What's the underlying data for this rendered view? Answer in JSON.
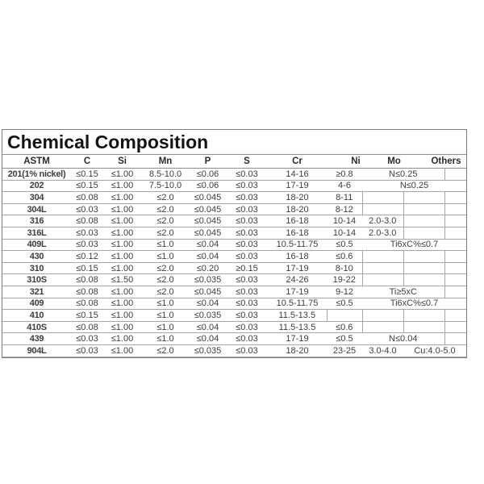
{
  "title": "Chemical Composition",
  "table": {
    "columns": [
      "ASTM",
      "C",
      "Si",
      "Mn",
      "P",
      "S",
      "Cr",
      "Ni",
      "Mo",
      "Others"
    ],
    "rows": [
      {
        "astm": "201(1% nickel)",
        "c": "≤0.15",
        "si": "≤1.00",
        "mn": "8.5-10.0",
        "p": "≤0.06",
        "s": "≤0.03",
        "cr": "14-16",
        "ni": "≥0.8",
        "tail": {
          "type": "span-right",
          "text": "N≤0.25"
        }
      },
      {
        "astm": "202",
        "c": "≤0.15",
        "si": "≤1.00",
        "mn": "7.5-10.0",
        "p": "≤0.06",
        "s": "≤0.03",
        "cr": "17-19",
        "ni": "4-6",
        "tail": {
          "type": "span-center",
          "text": "N≤0.25"
        }
      },
      {
        "astm": "304",
        "c": "≤0.08",
        "si": "≤1.00",
        "mn": "≤2.0",
        "p": "≤0.045",
        "s": "≤0.03",
        "cr": "18-20",
        "ni": "8-11",
        "tail": {
          "type": "boxed"
        }
      },
      {
        "astm": "304L",
        "c": "≤0.03",
        "si": "≤1.00",
        "mn": "≤2.0",
        "p": "≤0.045",
        "s": "≤0.03",
        "cr": "18-20",
        "ni": "8-12",
        "tail": {
          "type": "boxed"
        }
      },
      {
        "astm": "316",
        "c": "≤0.08",
        "si": "≤1.00",
        "mn": "≤2.0",
        "p": "≤0.045",
        "s": "≤0.03",
        "cr": "16-18",
        "ni": "10-14",
        "tail": {
          "type": "mo-value",
          "mo": "2.0-3.0"
        }
      },
      {
        "astm": "316L",
        "c": "≤0.03",
        "si": "≤1.00",
        "mn": "≤2.0",
        "p": "≤0.045",
        "s": "≤0.03",
        "cr": "16-18",
        "ni": "10-14",
        "tail": {
          "type": "mo-value",
          "mo": "2.0-3.0"
        }
      },
      {
        "astm": "409L",
        "c": "≤0.03",
        "si": "≤1.00",
        "mn": "≤1.0",
        "p": "≤0.04",
        "s": "≤0.03",
        "cr": "10.5-11.75",
        "ni": "≤0.5",
        "tail": {
          "type": "span-center",
          "text": "Ti6xC%≤0.7"
        }
      },
      {
        "astm": "430",
        "c": "≤0.12",
        "si": "≤1.00",
        "mn": "≤1.0",
        "p": "≤0.04",
        "s": "≤0.03",
        "cr": "16-18",
        "ni": "≤0.6",
        "tail": {
          "type": "boxed"
        }
      },
      {
        "astm": "310",
        "c": "≤0.15",
        "si": "≤1.00",
        "mn": "≤2.0",
        "p": "≤0.20",
        "s": "≥0.15",
        "cr": "17-19",
        "ni": "8-10",
        "tail": {
          "type": "boxed"
        }
      },
      {
        "astm": "310S",
        "c": "≤0.08",
        "si": "≤1.50",
        "mn": "≤2.0",
        "p": "≤0.035",
        "s": "≤0.03",
        "cr": "24-26",
        "ni": "19-22",
        "tail": {
          "type": "boxed"
        }
      },
      {
        "astm": "321",
        "c": "≤0.08",
        "si": "≤1.00",
        "mn": "≤2.0",
        "p": "≤0.045",
        "s": "≤0.03",
        "cr": "17-19",
        "ni": "9-12",
        "tail": {
          "type": "span-right",
          "text": "Ti≥5xC"
        }
      },
      {
        "astm": "409",
        "c": "≤0.08",
        "si": "≤1.00",
        "mn": "≤1.0",
        "p": "≤0.04",
        "s": "≤0.03",
        "cr": "10.5-11.75",
        "ni": "≤0.5",
        "tail": {
          "type": "span-center",
          "text": "Ti6xC%≤0.7"
        }
      },
      {
        "astm": "410",
        "c": "≤0.15",
        "si": "≤1.00",
        "mn": "≤1.0",
        "p": "≤0.035",
        "s": "≤0.03",
        "cr": "11.5-13.5",
        "ni": "",
        "tail": {
          "type": "ni-boxed"
        }
      },
      {
        "astm": "410S",
        "c": "≤0.08",
        "si": "≤1.00",
        "mn": "≤1.0",
        "p": "≤0.04",
        "s": "≤0.03",
        "cr": "11.5-13.5",
        "ni": "≤0.6",
        "tail": {
          "type": "boxed"
        }
      },
      {
        "astm": "439",
        "c": "≤0.03",
        "si": "≤1.00",
        "mn": "≤1.0",
        "p": "≤0.04",
        "s": "≤0.03",
        "cr": "17-19",
        "ni": "≤0.5",
        "tail": {
          "type": "span-right",
          "text": "N≤0.04"
        }
      },
      {
        "astm": "904L",
        "c": "≤0.03",
        "si": "≤1.00",
        "mn": "≤2.0",
        "p": "≤0.035",
        "s": "≤0.03",
        "cr": "18-20",
        "ni": "23-25",
        "tail": {
          "type": "mo-span",
          "mo": "3.0-4.0",
          "text": "Cu:4.0-5.0"
        }
      }
    ]
  }
}
